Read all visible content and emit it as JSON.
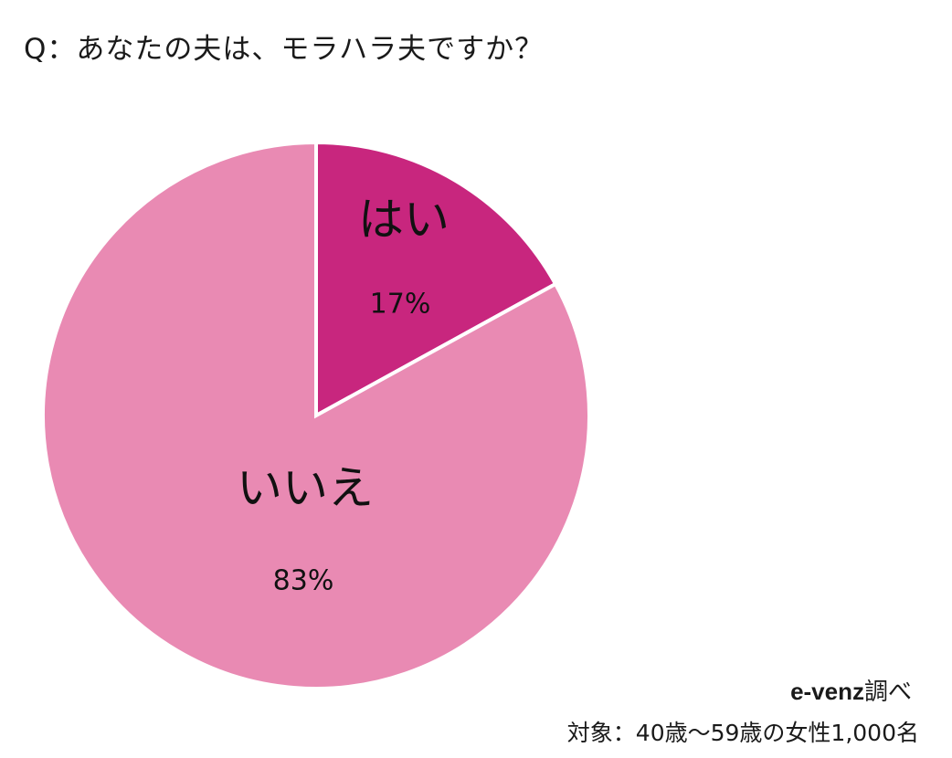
{
  "title": "Q：あなたの夫は、モラハラ夫ですか？",
  "chart_data": {
    "type": "pie",
    "title": "Q：あなたの夫は、モラハラ夫ですか？",
    "start": "12 o'clock",
    "direction": "clockwise",
    "slices": [
      {
        "label": "はい",
        "value": 17,
        "display": "17%",
        "color": "#c8267e"
      },
      {
        "label": "いいえ",
        "value": 83,
        "display": "83%",
        "color": "#e98ab3"
      }
    ],
    "slice_border_color": "#ffffff"
  },
  "source": {
    "name": "e-venz",
    "suffix": "調べ"
  },
  "respondents": "対象：40歳～59歳の女性1,000名"
}
